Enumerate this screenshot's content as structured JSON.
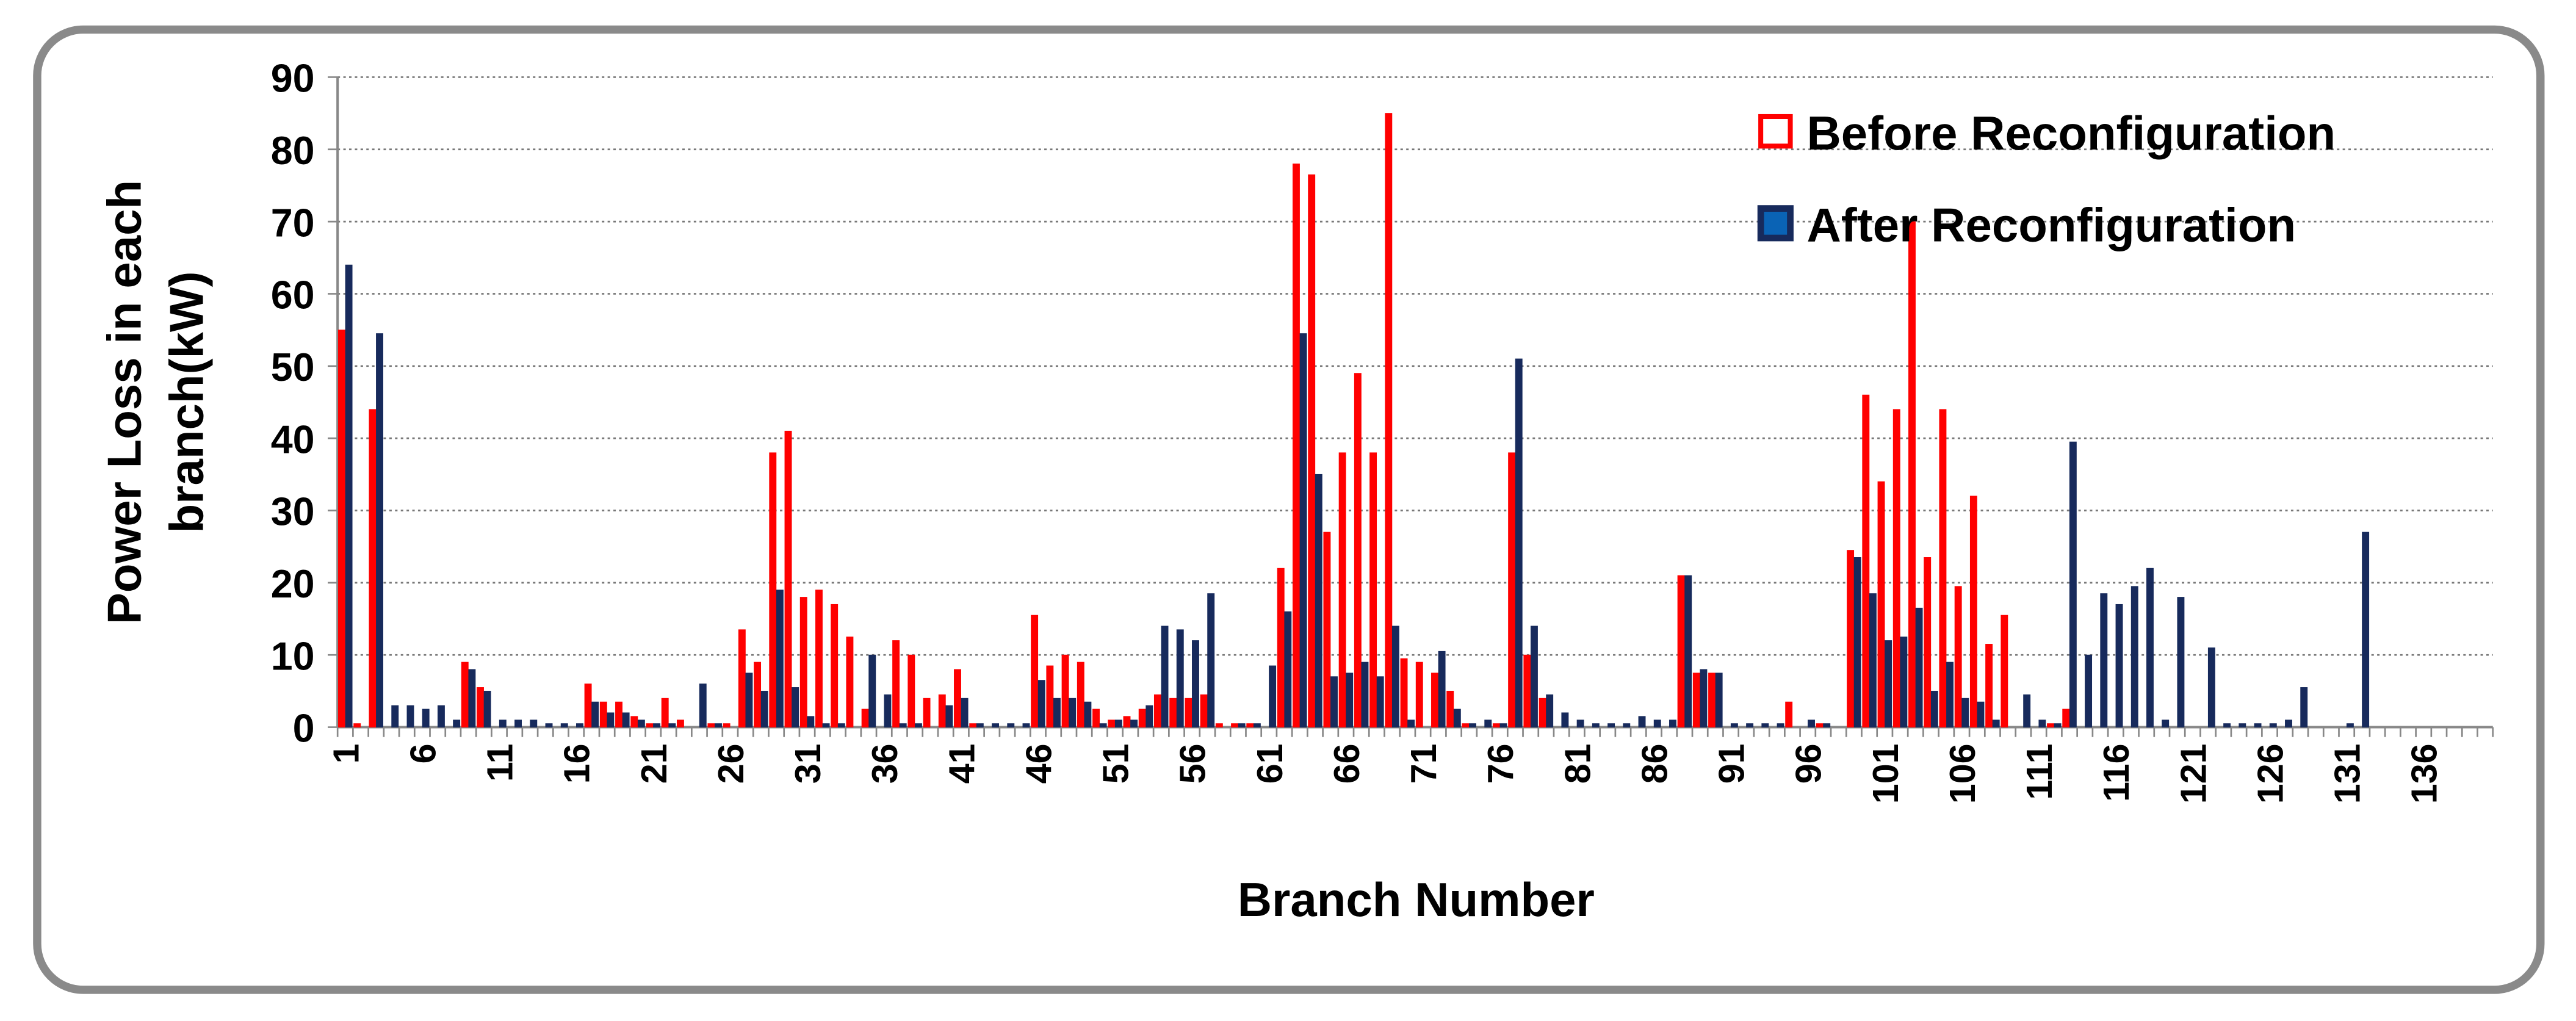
{
  "chart_data": {
    "type": "bar",
    "xlabel": "Branch Number",
    "ylabel": [
      "Power Loss in each",
      "branch(kW)"
    ],
    "categories": [
      "1",
      null,
      null,
      null,
      null,
      "6",
      null,
      null,
      null,
      null,
      "11",
      null,
      null,
      null,
      null,
      "16",
      null,
      null,
      null,
      null,
      "21",
      null,
      null,
      null,
      null,
      "26",
      null,
      null,
      null,
      null,
      "31",
      null,
      null,
      null,
      null,
      "36",
      null,
      null,
      null,
      null,
      "41",
      null,
      null,
      null,
      null,
      "46",
      null,
      null,
      null,
      null,
      "51",
      null,
      null,
      null,
      null,
      "56",
      null,
      null,
      null,
      null,
      "61",
      null,
      null,
      null,
      null,
      "66",
      null,
      null,
      null,
      null,
      "71",
      null,
      null,
      null,
      null,
      "76",
      null,
      null,
      null,
      null,
      "81",
      null,
      null,
      null,
      null,
      "86",
      null,
      null,
      null,
      null,
      "91",
      null,
      null,
      null,
      null,
      "96",
      null,
      null,
      null,
      null,
      "101",
      null,
      null,
      null,
      null,
      "106",
      null,
      null,
      null,
      null,
      "111",
      null,
      null,
      null,
      null,
      "116",
      null,
      null,
      null,
      null,
      "121",
      null,
      null,
      null,
      null,
      "126",
      null,
      null,
      null,
      null,
      "131",
      null,
      null,
      null,
      null,
      "136",
      null,
      null,
      null,
      null
    ],
    "series": [
      {
        "name": "Before Reconfiguration",
        "color": "#ff0000",
        "values": [
          55,
          0.5,
          44,
          0,
          0,
          0,
          0,
          0,
          9,
          5.5,
          0,
          0,
          0,
          0,
          0,
          0,
          6,
          3.5,
          3.5,
          1.5,
          0.5,
          4,
          1,
          0,
          0.5,
          0.5,
          13.5,
          9,
          38,
          41,
          18,
          19,
          17,
          12.5,
          2.5,
          0,
          12,
          10,
          4,
          4.5,
          8,
          0.5,
          0,
          0,
          0,
          15.5,
          8.5,
          10,
          9,
          2.5,
          1,
          1.5,
          2.5,
          4.5,
          4,
          4,
          4.5,
          0.5,
          0.5,
          0.5,
          0,
          22,
          78,
          76.5,
          27,
          38,
          49,
          38,
          85,
          9.5,
          9,
          7.5,
          5,
          0.5,
          0,
          0.5,
          38,
          10,
          4,
          0,
          0,
          0,
          0,
          0,
          0,
          0,
          0,
          21,
          7.5,
          7.5,
          0,
          0,
          0,
          0,
          3.5,
          0,
          0.5,
          0,
          24.5,
          46,
          34,
          44,
          70,
          23.5,
          44,
          19.5,
          32,
          11.5,
          15.5,
          0,
          0,
          0.5,
          2.5,
          0,
          0,
          0,
          0,
          0,
          0,
          0,
          0,
          0,
          0,
          0,
          0,
          0,
          0,
          0,
          0,
          0,
          0,
          0,
          0,
          0,
          0,
          0,
          0,
          0,
          0,
          0
        ]
      },
      {
        "name": "After Reconfiguration",
        "color": "#172a5c",
        "values": [
          64,
          0,
          54.5,
          3,
          3,
          2.5,
          3,
          1,
          8,
          5,
          1,
          1,
          1,
          0.5,
          0.5,
          0.5,
          3.5,
          2,
          2,
          1,
          0.5,
          0.5,
          0,
          6,
          0.5,
          0,
          7.5,
          5,
          19,
          5.5,
          1.5,
          0.5,
          0.5,
          0,
          10,
          4.5,
          0.5,
          0.5,
          0,
          3,
          4,
          0.5,
          0.5,
          0.5,
          0.5,
          6.5,
          4,
          4,
          3.5,
          0.5,
          1,
          1,
          3,
          14,
          13.5,
          12,
          18.5,
          0,
          0.5,
          0.5,
          8.5,
          16,
          54.5,
          35,
          7,
          7.5,
          9,
          7,
          14,
          1,
          0,
          10.5,
          2.5,
          0.5,
          1,
          0.5,
          51,
          14,
          4.5,
          2,
          1,
          0.5,
          0.5,
          0.5,
          1.5,
          1,
          1,
          21,
          8,
          7.5,
          0.5,
          0.5,
          0.5,
          0.5,
          0,
          1,
          0.5,
          0,
          23.5,
          18.5,
          12,
          12.5,
          16.5,
          5,
          9,
          4,
          3.5,
          1,
          0,
          4.5,
          1,
          0.5,
          39.5,
          10,
          18.5,
          17,
          19.5,
          22,
          1,
          18,
          0,
          11,
          0.5,
          0.5,
          0.5,
          0.5,
          1,
          5.5,
          0,
          0,
          0.5,
          27,
          0,
          0,
          0,
          0,
          0,
          0,
          0,
          0
        ]
      }
    ],
    "ylim": [
      0,
      90
    ],
    "yticks": [
      0,
      10,
      20,
      30,
      40,
      50,
      60,
      70,
      80,
      90
    ],
    "grid": true,
    "legend": "top-right"
  }
}
